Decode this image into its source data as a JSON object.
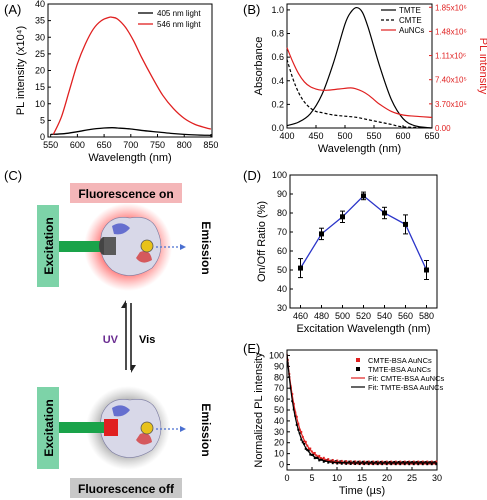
{
  "panel_labels": {
    "a": "(A)",
    "b": "(B)",
    "c": "(C)",
    "d": "(D)",
    "e": "(E)"
  },
  "panel_c": {
    "fluorescence_on": "Fluorescence on",
    "fluorescence_off": "Fluorescence off",
    "excitation_top": "Excitation",
    "excitation_bottom": "Excitation",
    "emission_top": "Emission",
    "emission_bottom": "Emission",
    "uv": "UV",
    "vis": "Vis",
    "colors": {
      "on_banner": "#f4b6b8",
      "off_banner": "#c8c8c8",
      "excitation_box": "#7dd3a8",
      "arrow": "#1aa34a",
      "uv_text": "#6a2c91",
      "glow_on": "#ff2020",
      "glow_off": "#555555"
    }
  },
  "chart_data": [
    {
      "id": "A",
      "type": "line",
      "xlabel": "Wavelength (nm)",
      "ylabel": "PL intensity (x10⁴)",
      "xlim": [
        545,
        852
      ],
      "ylim": [
        0,
        40
      ],
      "xticks": [
        550,
        600,
        650,
        700,
        750,
        800,
        850
      ],
      "yticks": [
        0,
        5,
        10,
        15,
        20,
        25,
        30,
        35,
        40
      ],
      "legend_position": "top-right",
      "series": [
        {
          "name": "405 nm light",
          "color": "#000000",
          "x": [
            550,
            575,
            600,
            625,
            650,
            665,
            675,
            700,
            725,
            750,
            775,
            800,
            825,
            850
          ],
          "y": [
            0.8,
            1.0,
            1.6,
            2.3,
            2.7,
            2.8,
            2.7,
            2.4,
            1.9,
            1.5,
            1.1,
            0.8,
            0.6,
            0.5
          ]
        },
        {
          "name": "546 nm light",
          "color": "#e02020",
          "x": [
            555,
            570,
            585,
            600,
            615,
            630,
            645,
            660,
            665,
            675,
            690,
            705,
            720,
            740,
            760,
            780,
            800,
            820,
            840,
            850
          ],
          "y": [
            0.8,
            6,
            14,
            22,
            28,
            32.5,
            35,
            36,
            36,
            35.5,
            33,
            29,
            24,
            18,
            12.5,
            8.5,
            5.6,
            3.8,
            2.8,
            2.4
          ]
        }
      ]
    },
    {
      "id": "B",
      "type": "line",
      "xlabel": "Wavelength (nm)",
      "ylabel": "Absorbance",
      "y2label": "PL intensity",
      "xlim": [
        400,
        650
      ],
      "ylim": [
        0,
        1.05
      ],
      "y2lim": [
        0,
        1900000.0
      ],
      "xticks": [
        400,
        450,
        500,
        550,
        600,
        650
      ],
      "yticks": [
        0.0,
        0.2,
        0.4,
        0.6,
        0.8,
        1.0
      ],
      "y2ticks": [
        "0.00",
        "3.70x10⁵",
        "7.40x10⁵",
        "1.11x10⁶",
        "1.48x10⁶",
        "1.85x10⁶"
      ],
      "y2tick_values": [
        0,
        370000,
        740000,
        1110000,
        1480000,
        1850000
      ],
      "legend_position": "top-right",
      "series": [
        {
          "name": "TMTE",
          "color": "#000000",
          "dash": "solid",
          "x": [
            400,
            420,
            440,
            460,
            480,
            500,
            510,
            520,
            530,
            540,
            560,
            580,
            600,
            620,
            650
          ],
          "y": [
            0.02,
            0.05,
            0.12,
            0.28,
            0.55,
            0.88,
            0.98,
            1.02,
            0.98,
            0.85,
            0.52,
            0.24,
            0.08,
            0.02,
            0.0
          ]
        },
        {
          "name": "CMTE",
          "color": "#000000",
          "dash": "dash",
          "x": [
            400,
            410,
            420,
            430,
            440,
            450,
            460,
            480,
            500,
            520,
            540,
            560,
            580,
            600,
            650
          ],
          "y": [
            0.58,
            0.42,
            0.3,
            0.22,
            0.17,
            0.14,
            0.13,
            0.11,
            0.1,
            0.09,
            0.07,
            0.05,
            0.03,
            0.01,
            0.0
          ]
        },
        {
          "name": "AuNCs",
          "color": "#e02020",
          "dash": "solid",
          "x": [
            400,
            410,
            420,
            430,
            440,
            450,
            460,
            470,
            490,
            510,
            520,
            530,
            540,
            550,
            560,
            580,
            600,
            620,
            650
          ],
          "y": [
            0.68,
            0.56,
            0.46,
            0.39,
            0.35,
            0.33,
            0.32,
            0.32,
            0.33,
            0.34,
            0.33,
            0.31,
            0.28,
            0.24,
            0.2,
            0.14,
            0.11,
            0.1,
            0.09
          ]
        }
      ]
    },
    {
      "id": "D",
      "type": "line",
      "xlabel": "Excitation Wavelength (nm)",
      "ylabel": "On/Off Ratio (%)",
      "xlim": [
        450,
        590
      ],
      "ylim": [
        30,
        100
      ],
      "xticks": [
        460,
        480,
        500,
        520,
        540,
        560,
        580
      ],
      "yticks": [
        30,
        40,
        50,
        60,
        70,
        80,
        90,
        100
      ],
      "series": [
        {
          "name": "",
          "color": "#2b35c9",
          "x": [
            460,
            480,
            500,
            520,
            540,
            560,
            580
          ],
          "y": [
            51,
            69,
            78,
            89,
            80,
            74,
            50
          ],
          "err": [
            5,
            3,
            3,
            2,
            3,
            5,
            5
          ]
        }
      ]
    },
    {
      "id": "E",
      "type": "line",
      "xlabel": "Time (µs)",
      "ylabel": "Normalized PL intensity",
      "xlim": [
        0,
        30
      ],
      "ylim": [
        -5,
        105
      ],
      "xticks": [
        0,
        5,
        10,
        15,
        20,
        25,
        30
      ],
      "yticks": [
        0,
        10,
        20,
        30,
        40,
        50,
        60,
        70,
        80,
        90,
        100
      ],
      "legend_position": "top-right",
      "series": [
        {
          "name": "CMTE-BSA AuNCs",
          "kind": "points",
          "color": "#e02020",
          "tau": 2.2,
          "amp": 100
        },
        {
          "name": "TMTE-BSA AuNCs",
          "kind": "points",
          "color": "#000000",
          "tau": 1.9,
          "amp": 100
        },
        {
          "name": "Fit: CMTE-BSA AuNCs",
          "kind": "fit",
          "color": "#e02020",
          "tau": 2.2,
          "amp": 100
        },
        {
          "name": "Fit: TMTE-BSA AuNCs",
          "kind": "fit",
          "color": "#000000",
          "tau": 1.9,
          "amp": 100
        }
      ]
    }
  ]
}
